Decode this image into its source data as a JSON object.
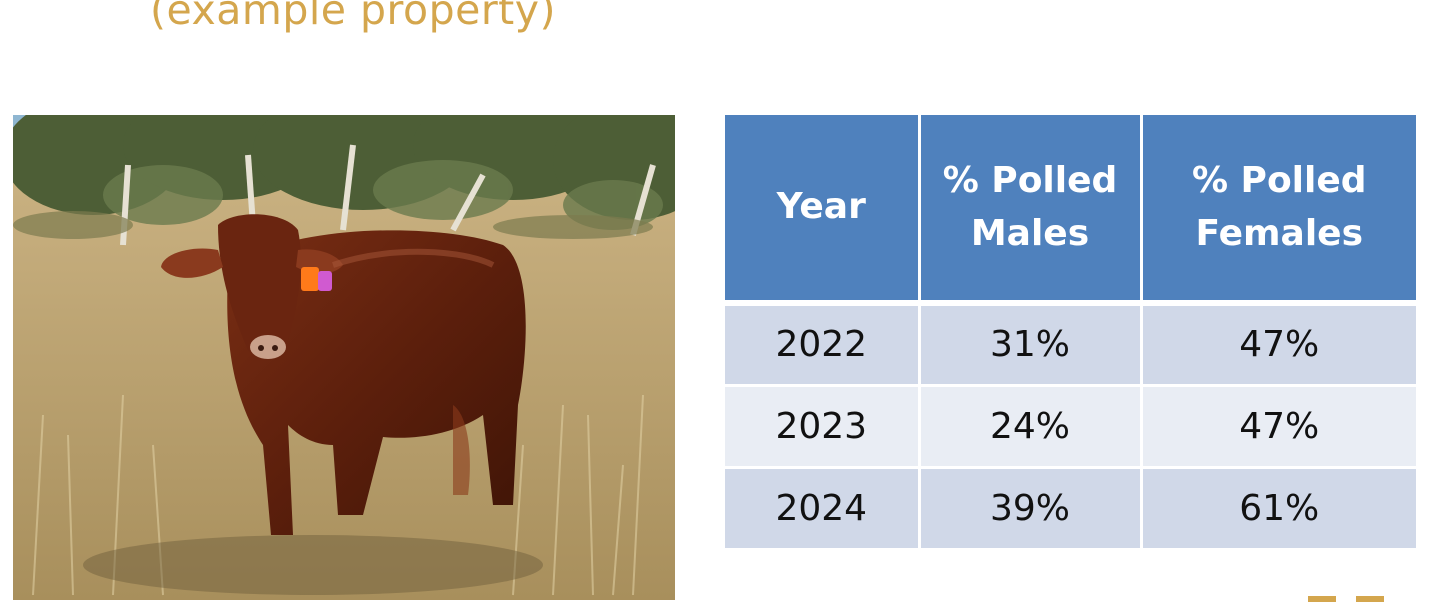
{
  "slide": {
    "subtitle": "(example property)"
  },
  "photo": {
    "subject": "red-bull-in-dry-grass"
  },
  "table": {
    "headers": [
      "Year",
      "% Polled Males",
      "% Polled Females"
    ],
    "rows": [
      [
        "2022",
        "31%",
        "47%"
      ],
      [
        "2023",
        "24%",
        "47%"
      ],
      [
        "2024",
        "39%",
        "61%"
      ]
    ]
  },
  "colors": {
    "header_bg": "#4f81bd",
    "row_odd": "#d0d8e8",
    "row_even": "#e9edf4",
    "accent": "#d4a64d"
  }
}
